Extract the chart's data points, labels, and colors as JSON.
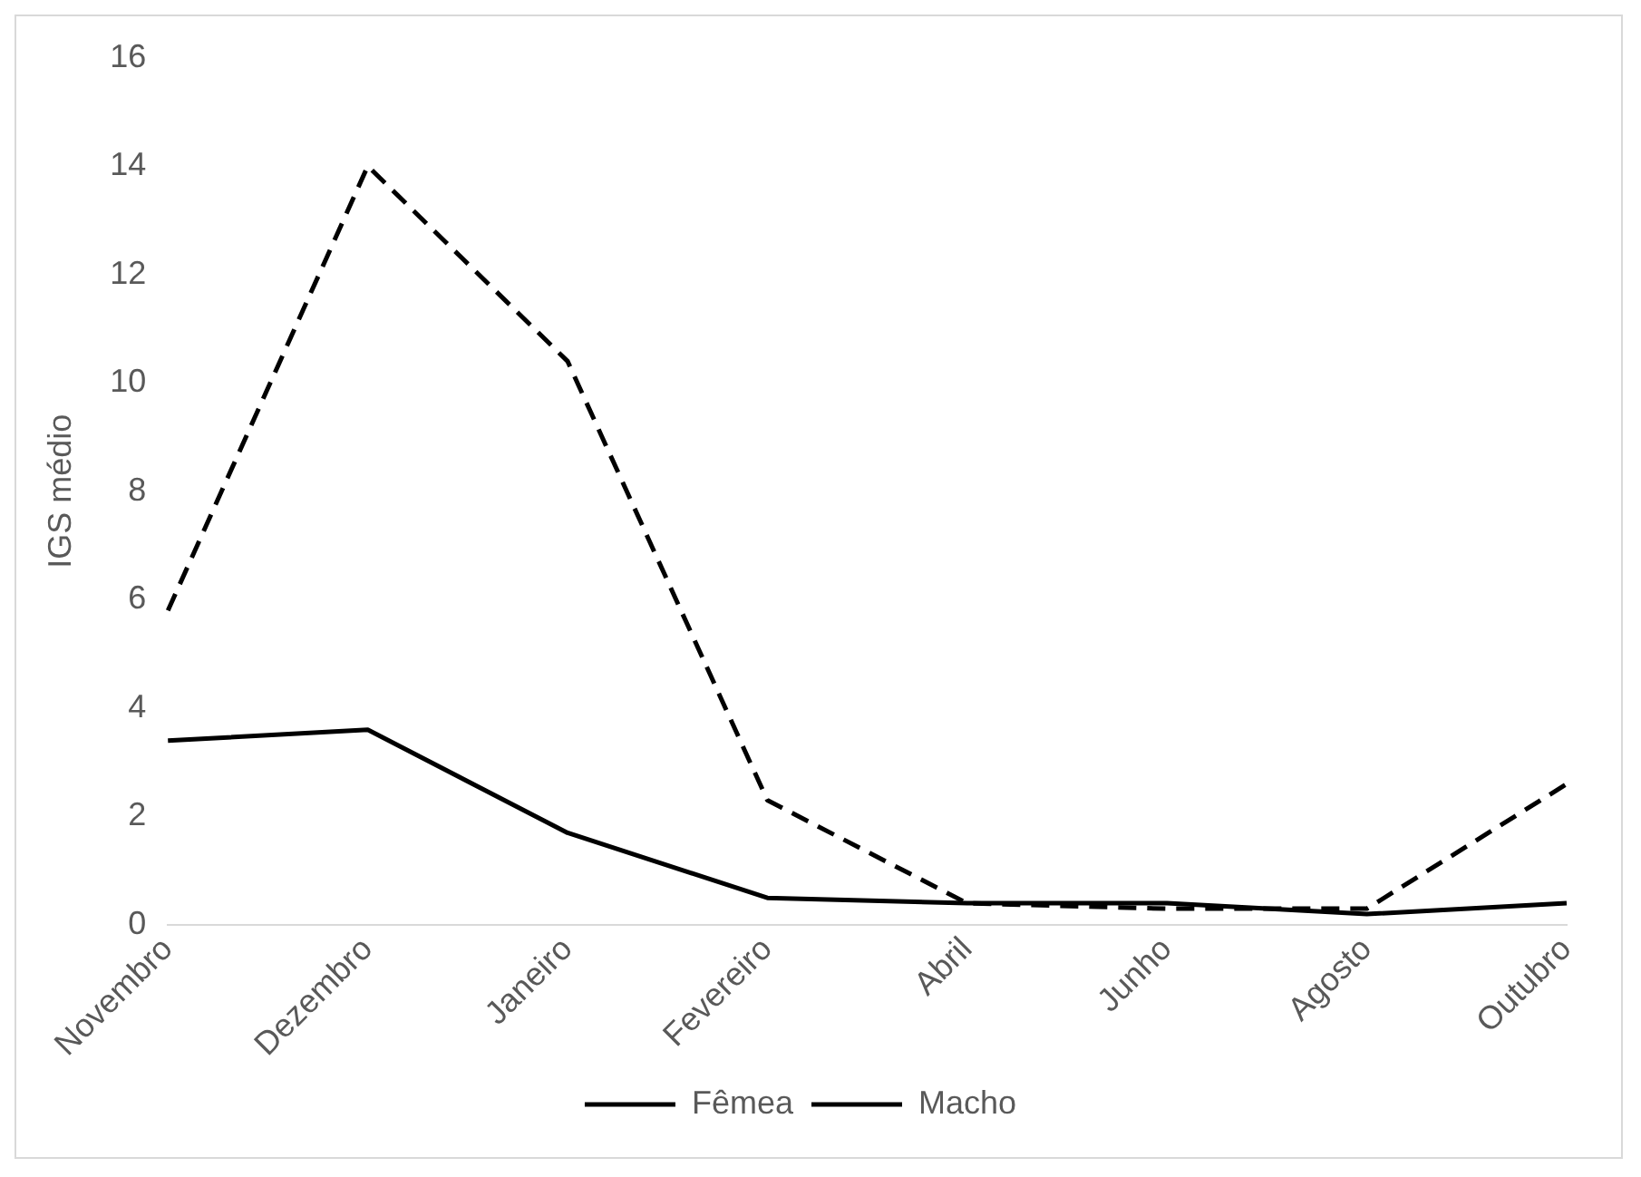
{
  "chart_data": {
    "type": "line",
    "ylabel": "IGS médio",
    "categories": [
      "Novembro",
      "Dezembro",
      "Janeiro",
      "Fevereiro",
      "Abril",
      "Junho",
      "Agosto",
      "Outubro"
    ],
    "series": [
      {
        "name": "Fêmea",
        "color": "#000000",
        "line_style": "dashed",
        "values": [
          5.8,
          14.0,
          10.4,
          2.3,
          0.4,
          0.3,
          0.3,
          2.6
        ]
      },
      {
        "name": "Macho",
        "color": "#000000",
        "line_style": "solid",
        "values": [
          3.4,
          3.6,
          1.7,
          0.5,
          0.4,
          0.4,
          0.2,
          0.4
        ]
      }
    ],
    "ylim": [
      0,
      16
    ],
    "yticks": [
      0,
      2,
      4,
      6,
      8,
      10,
      12,
      14,
      16
    ],
    "grid": false,
    "legend": "bottom",
    "marker": "none"
  }
}
